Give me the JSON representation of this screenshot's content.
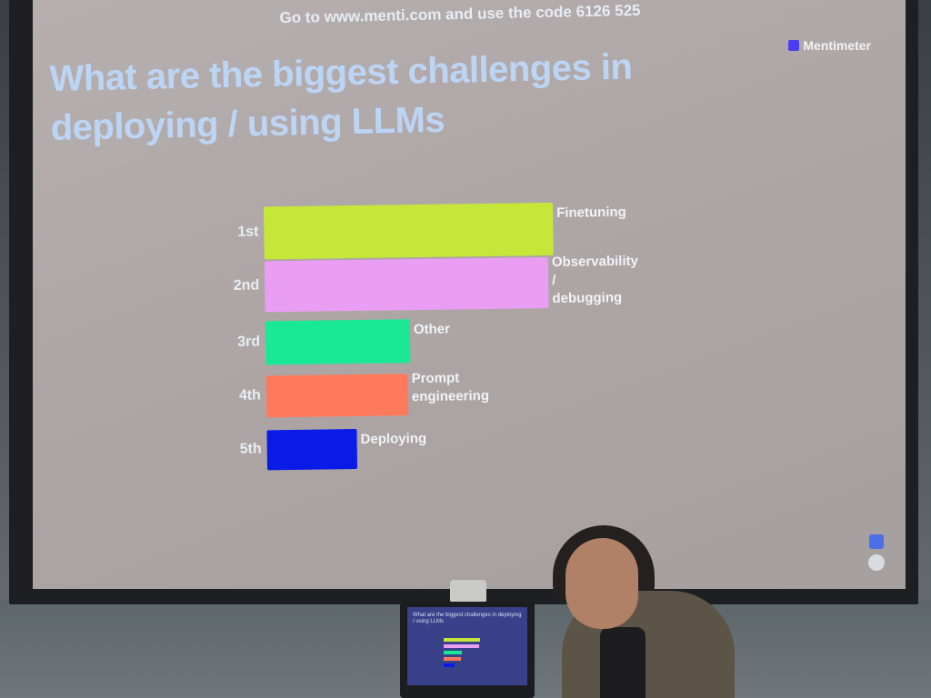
{
  "screen": {
    "join_instructions": "Go to www.menti.com and use the code 6126 525",
    "brand": "Mentimeter",
    "question": "What are the biggest challenges in deploying / using LLMs",
    "accent_colors": {
      "1st": "#c7e63a",
      "2nd": "#ea9ef3",
      "3rd": "#19e895",
      "4th": "#ff7a5c",
      "5th": "#0a1be8"
    }
  },
  "chart_data": {
    "type": "bar",
    "orientation": "horizontal",
    "title": "What are the biggest challenges in deploying / using LLMs",
    "categories": [
      "1st",
      "2nd",
      "3rd",
      "4th",
      "5th"
    ],
    "labels": [
      "Finetuning",
      "Observability / debugging",
      "Other",
      "Prompt engineering",
      "Deploying"
    ],
    "values": [
      100,
      98,
      50,
      49,
      31
    ],
    "value_unit": "relative score (approx.)"
  }
}
